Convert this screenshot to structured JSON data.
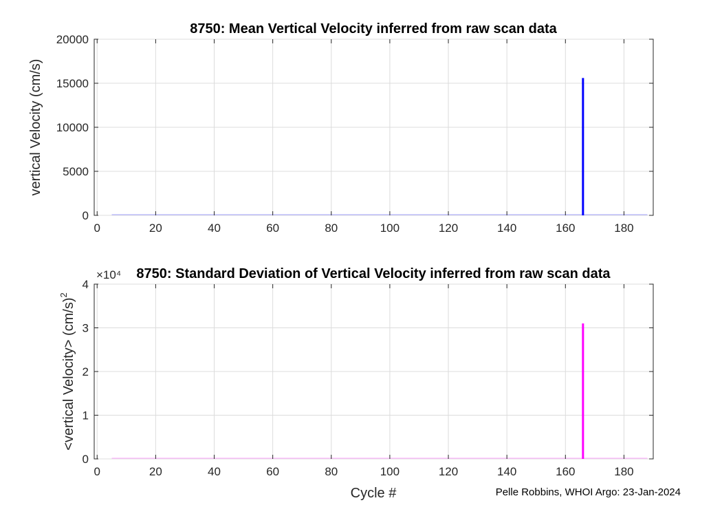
{
  "chart_data": [
    {
      "type": "bar",
      "title": "8750: Mean Vertical Velocity inferred from raw scan data",
      "xlabel": "",
      "ylabel": "vertical Velocity (cm/s)",
      "xlim": [
        -1,
        190
      ],
      "ylim": [
        0,
        20000
      ],
      "xticks": [
        0,
        20,
        40,
        60,
        80,
        100,
        120,
        140,
        160,
        180
      ],
      "yticks": [
        0,
        5000,
        10000,
        15000,
        20000
      ],
      "ytick_labels": [
        "0",
        "5000",
        "10000",
        "15000",
        "20000"
      ],
      "grid": true,
      "series": [
        {
          "name": "mean vertical velocity",
          "color": "#0000ff",
          "x": [
            166
          ],
          "values": [
            15600
          ]
        }
      ]
    },
    {
      "type": "bar",
      "title": "8750: Standard Deviation of Vertical Velocity inferred from raw scan data",
      "xlabel": "Cycle #",
      "ylabel": "<vertical Velocity> (cm/s)",
      "ylabel_superscript": "2",
      "exponent_label": "×10⁴",
      "xlim": [
        -1,
        190
      ],
      "ylim": [
        0,
        4
      ],
      "xticks": [
        0,
        20,
        40,
        60,
        80,
        100,
        120,
        140,
        160,
        180
      ],
      "yticks": [
        0,
        1,
        2,
        3,
        4
      ],
      "ytick_labels": [
        "0",
        "1",
        "2",
        "3",
        "4"
      ],
      "grid": true,
      "series": [
        {
          "name": "std vertical velocity",
          "color": "#ff00ff",
          "x": [
            166
          ],
          "values": [
            3.1
          ]
        }
      ]
    }
  ],
  "footer": {
    "credit": "Pelle Robbins, WHOI Argo: 23-Jan-2024"
  }
}
